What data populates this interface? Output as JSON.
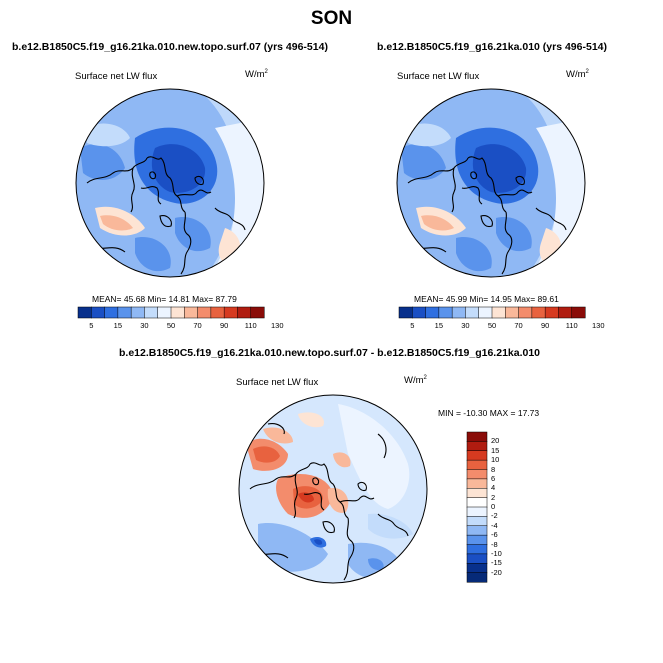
{
  "figure": {
    "title": "SON",
    "panels": [
      {
        "id": "exp",
        "title": "b.e12.B1850C5.f19_g16.21ka.010.new.topo.surf.07 (yrs 496-514)",
        "variable": "Surface net LW flux",
        "units_base": "W/m",
        "units_exp": "2",
        "stats": "MEAN= 45.68  Min= 14.81  Max= 87.79"
      },
      {
        "id": "ctl",
        "title": "b.e12.B1850C5.f19_g16.21ka.010 (yrs 496-514)",
        "variable": "Surface net LW flux",
        "units_base": "W/m",
        "units_exp": "2",
        "stats": "MEAN= 45.99  Min= 14.95  Max= 89.61"
      },
      {
        "id": "diff",
        "title": "b.e12.B1850C5.f19_g16.21ka.010.new.topo.surf.07 - b.e12.B1850C5.f19_g16.21ka.010",
        "variable": "Surface net LW flux",
        "units_base": "W/m",
        "units_exp": "2",
        "stats": "MIN = -10.30 MAX =  17.73"
      }
    ]
  },
  "colorbar_abs": {
    "labels": [
      "5",
      "15",
      "30",
      "50",
      "70",
      "90",
      "110",
      "130"
    ],
    "colors": [
      "#08308c",
      "#1a4fc4",
      "#2f6fe0",
      "#5a93ec",
      "#8fb8f4",
      "#c3dcfb",
      "#ecf4ff",
      "#fde4d4",
      "#f9b89a",
      "#f38c6c",
      "#e8623f",
      "#d63a20",
      "#b01c10",
      "#8a0c08"
    ]
  },
  "colorbar_diff": {
    "labels": [
      "20",
      "15",
      "10",
      "8",
      "6",
      "4",
      "2",
      "0",
      "-2",
      "-4",
      "-6",
      "-8",
      "-10",
      "-15",
      "-20"
    ],
    "colors": [
      "#8a0c08",
      "#b01c10",
      "#d63a20",
      "#e8623f",
      "#f38c6c",
      "#f9b89a",
      "#fde4d4",
      "#ffffff",
      "#ecf4ff",
      "#c3dcfb",
      "#8fb8f4",
      "#5a93ec",
      "#2f6fe0",
      "#1a4fc4",
      "#08308c",
      "#062a78"
    ]
  }
}
